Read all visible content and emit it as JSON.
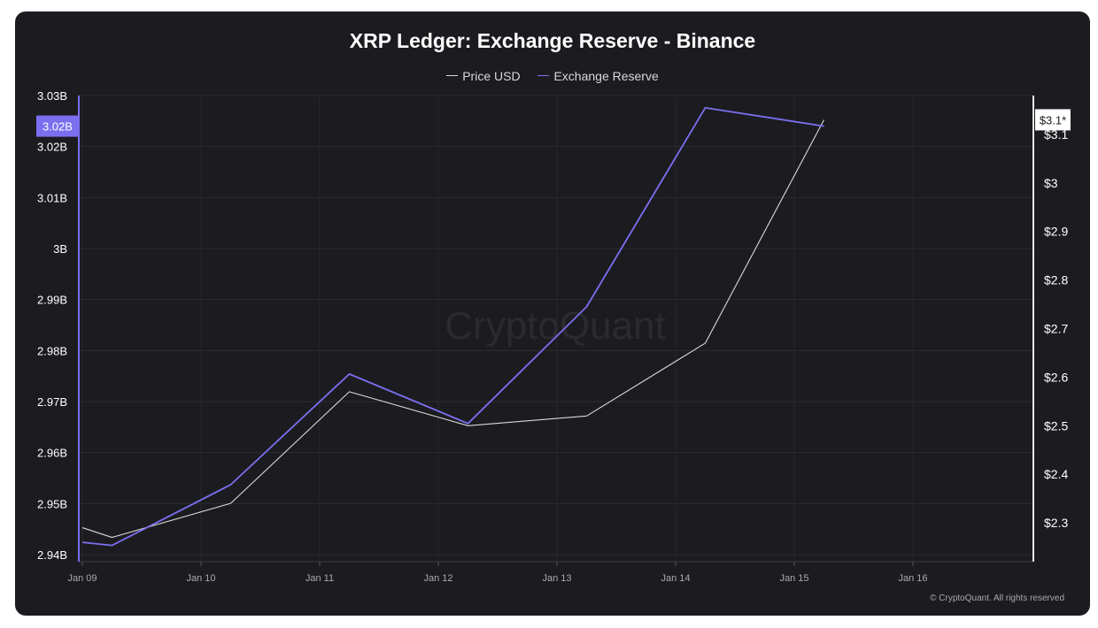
{
  "chart_data": {
    "type": "line",
    "title": "XRP Ledger: Exchange Reserve - Binance",
    "x": [
      "Jan 09",
      "Jan 09",
      "Jan 10",
      "Jan 11",
      "Jan 12",
      "Jan 13",
      "Jan 14",
      "Jan 15"
    ],
    "x_positions_days": [
      0,
      0.25,
      1.25,
      2.25,
      3.25,
      4.25,
      5.25,
      6.25
    ],
    "x_ticks": [
      "Jan 09",
      "Jan 10",
      "Jan 11",
      "Jan 12",
      "Jan 13",
      "Jan 14",
      "Jan 15",
      "Jan 16"
    ],
    "series": [
      {
        "name": "Price USD",
        "color": "#d9d9d9",
        "axis": "right",
        "x": [
          0,
          0.25,
          1.25,
          2.25,
          3.25,
          4.25,
          5.25,
          6.25
        ],
        "values": [
          2.29,
          2.27,
          2.34,
          2.57,
          2.5,
          2.52,
          2.67,
          3.13
        ]
      },
      {
        "name": "Exchange Reserve",
        "color": "#7b6ff0",
        "axis": "left",
        "x": [
          0,
          0.25,
          1.25,
          2.25,
          3.25,
          4.25,
          5.25,
          6.25
        ],
        "values": [
          2.9424,
          2.9418,
          2.9537,
          2.9754,
          2.9657,
          2.9886,
          3.0276,
          3.024
        ]
      }
    ],
    "y_left": {
      "ticks": [
        "2.94B",
        "2.95B",
        "2.96B",
        "2.97B",
        "2.98B",
        "2.99B",
        "3B",
        "3.01B",
        "3.02B",
        "3.03B"
      ],
      "tick_values": [
        2.94,
        2.95,
        2.96,
        2.97,
        2.98,
        2.99,
        3.0,
        3.01,
        3.02,
        3.03
      ],
      "range": [
        2.94,
        3.03
      ],
      "unit": "B",
      "current_label": "3.02B"
    },
    "y_right": {
      "ticks": [
        "$2.3",
        "$2.4",
        "$2.5",
        "$2.6",
        "$2.7",
        "$2.8",
        "$2.9",
        "$3",
        "$3.1"
      ],
      "tick_values": [
        2.3,
        2.4,
        2.5,
        2.6,
        2.7,
        2.8,
        2.9,
        3.0,
        3.1
      ],
      "range": [
        2.22,
        3.18
      ],
      "current_label": "$3.1*"
    },
    "grid": true,
    "legend_position": "top-center"
  },
  "legend": {
    "price_label": "Price USD",
    "reserve_label": "Exchange Reserve"
  },
  "watermark": "CryptoQuant",
  "footer": "© CryptoQuant. All rights reserved"
}
